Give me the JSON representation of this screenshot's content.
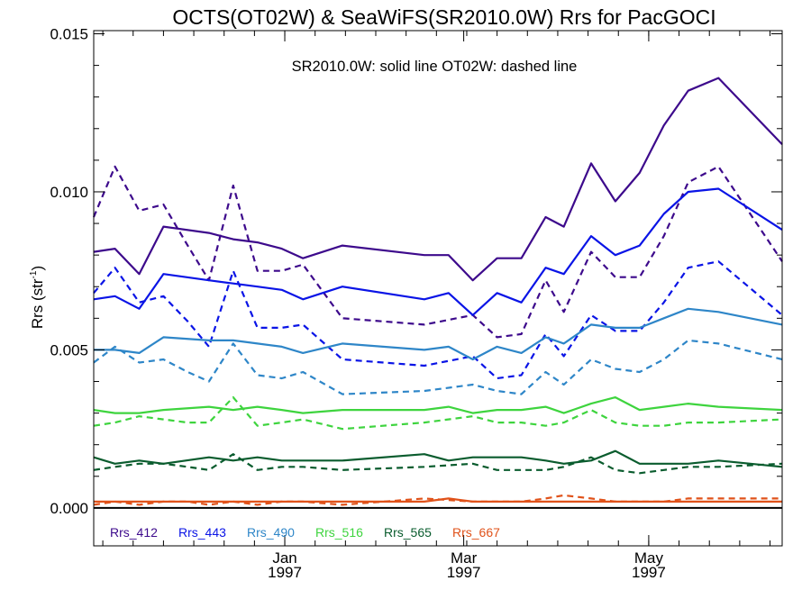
{
  "chart_data": {
    "type": "line",
    "title": "OCTS(OT02W) & SeaWiFS(SR2010.0W)  Rrs for PacGOCI",
    "subtitle": "SR2010.0W: solid line   OT02W: dashed line",
    "ylabel": "Rrs (str",
    "ylabel_sup": "-1",
    "ylabel_close": ")",
    "ylim": [
      -0.0012,
      0.0151
    ],
    "yticks": [
      {
        "value": 0.0,
        "label": "0.000"
      },
      {
        "value": 0.005,
        "label": "0.005"
      },
      {
        "value": 0.01,
        "label": "0.010"
      },
      {
        "value": 0.015,
        "label": "0.015"
      }
    ],
    "x_unit": "days since 1996-10-30",
    "xlim": [
      0,
      227
    ],
    "xticks": [
      {
        "value": 63,
        "month": "Jan",
        "year": "1997"
      },
      {
        "value": 122,
        "month": "Mar",
        "year": "1997"
      },
      {
        "value": 183,
        "month": "May",
        "year": "1997"
      }
    ],
    "grid": false,
    "legend_position": "bottom-left",
    "series": [
      {
        "name": "Rrs_412",
        "color": "#3d0a8c",
        "style": "solid",
        "x": [
          0,
          7,
          15,
          23,
          38,
          46,
          54,
          62,
          69,
          82,
          109,
          117,
          125,
          133,
          141,
          149,
          155,
          164,
          172,
          180,
          188,
          196,
          206,
          227
        ],
        "y": [
          0.0081,
          0.0082,
          0.0074,
          0.0089,
          0.0087,
          0.0085,
          0.0084,
          0.0082,
          0.0079,
          0.0083,
          0.008,
          0.008,
          0.0072,
          0.0079,
          0.0079,
          0.0092,
          0.0089,
          0.0109,
          0.0097,
          0.0106,
          0.0121,
          0.0132,
          0.0136,
          0.0115
        ]
      },
      {
        "name": "Rrs_412",
        "color": "#3d0a8c",
        "style": "dashed",
        "x": [
          0,
          7,
          15,
          23,
          31,
          38,
          46,
          54,
          62,
          69,
          82,
          109,
          125,
          133,
          141,
          149,
          155,
          164,
          172,
          180,
          188,
          196,
          206,
          227
        ],
        "y": [
          0.0092,
          0.0108,
          0.0094,
          0.0096,
          0.0083,
          0.0072,
          0.0102,
          0.0075,
          0.0075,
          0.0077,
          0.006,
          0.0058,
          0.0061,
          0.0054,
          0.0055,
          0.0072,
          0.0062,
          0.0081,
          0.0073,
          0.0073,
          0.0086,
          0.0103,
          0.0108,
          0.0078
        ]
      },
      {
        "name": "Rrs_443",
        "color": "#0a14e6",
        "style": "solid",
        "x": [
          0,
          7,
          15,
          23,
          38,
          46,
          54,
          62,
          69,
          82,
          109,
          117,
          125,
          133,
          141,
          149,
          155,
          164,
          172,
          180,
          188,
          196,
          206,
          227
        ],
        "y": [
          0.0066,
          0.0067,
          0.0063,
          0.0074,
          0.0072,
          0.0071,
          0.007,
          0.0069,
          0.0066,
          0.007,
          0.0066,
          0.0068,
          0.0061,
          0.0068,
          0.0065,
          0.0076,
          0.0074,
          0.0086,
          0.008,
          0.0083,
          0.0093,
          0.01,
          0.0101,
          0.0088
        ]
      },
      {
        "name": "Rrs_443",
        "color": "#0a14e6",
        "style": "dashed",
        "x": [
          0,
          7,
          15,
          23,
          31,
          38,
          46,
          54,
          62,
          69,
          82,
          109,
          125,
          133,
          141,
          149,
          155,
          164,
          172,
          180,
          188,
          196,
          206,
          227
        ],
        "y": [
          0.0068,
          0.0076,
          0.0065,
          0.0067,
          0.0059,
          0.0051,
          0.0075,
          0.0057,
          0.0057,
          0.0058,
          0.0047,
          0.0045,
          0.0048,
          0.0041,
          0.0042,
          0.0055,
          0.0048,
          0.0061,
          0.0056,
          0.0056,
          0.0065,
          0.0076,
          0.0078,
          0.0061
        ]
      },
      {
        "name": "Rrs_490",
        "color": "#2e86c8",
        "style": "solid",
        "x": [
          0,
          7,
          15,
          23,
          38,
          46,
          54,
          62,
          69,
          82,
          109,
          117,
          125,
          133,
          141,
          149,
          155,
          164,
          172,
          180,
          188,
          196,
          206,
          227
        ],
        "y": [
          0.005,
          0.005,
          0.0049,
          0.0054,
          0.0053,
          0.0053,
          0.0052,
          0.0051,
          0.0049,
          0.0052,
          0.005,
          0.0051,
          0.0047,
          0.0051,
          0.0049,
          0.0054,
          0.0052,
          0.0058,
          0.0057,
          0.0057,
          0.006,
          0.0063,
          0.0062,
          0.0058
        ]
      },
      {
        "name": "Rrs_490",
        "color": "#2e86c8",
        "style": "dashed",
        "x": [
          0,
          7,
          15,
          23,
          31,
          38,
          46,
          54,
          62,
          69,
          82,
          109,
          125,
          133,
          141,
          149,
          155,
          164,
          172,
          180,
          188,
          196,
          206,
          227
        ],
        "y": [
          0.0046,
          0.0051,
          0.0046,
          0.0047,
          0.0043,
          0.004,
          0.0052,
          0.0042,
          0.0041,
          0.0043,
          0.0036,
          0.0037,
          0.0039,
          0.0037,
          0.0036,
          0.0043,
          0.0039,
          0.0047,
          0.0044,
          0.0043,
          0.0047,
          0.0053,
          0.0052,
          0.0047
        ]
      },
      {
        "name": "Rrs_516",
        "color": "#3ed43e",
        "style": "solid",
        "x": [
          0,
          7,
          15,
          23,
          38,
          46,
          54,
          62,
          69,
          82,
          109,
          117,
          125,
          133,
          141,
          149,
          155,
          164,
          172,
          180,
          188,
          196,
          206,
          227
        ],
        "y": [
          0.0031,
          0.003,
          0.003,
          0.0031,
          0.0032,
          0.0031,
          0.0032,
          0.0031,
          0.003,
          0.0031,
          0.0031,
          0.0032,
          0.003,
          0.0031,
          0.0031,
          0.0032,
          0.003,
          0.0033,
          0.0035,
          0.0031,
          0.0032,
          0.0033,
          0.0032,
          0.0031
        ]
      },
      {
        "name": "Rrs_516",
        "color": "#3ed43e",
        "style": "dashed",
        "x": [
          0,
          7,
          15,
          23,
          31,
          38,
          46,
          54,
          62,
          69,
          82,
          109,
          125,
          133,
          141,
          149,
          155,
          164,
          172,
          180,
          188,
          196,
          206,
          227
        ],
        "y": [
          0.0026,
          0.0027,
          0.0029,
          0.0028,
          0.0027,
          0.0027,
          0.0035,
          0.0026,
          0.0027,
          0.0028,
          0.0025,
          0.0027,
          0.0029,
          0.0027,
          0.0027,
          0.0026,
          0.0027,
          0.0031,
          0.0027,
          0.0026,
          0.0026,
          0.0027,
          0.0027,
          0.0028
        ]
      },
      {
        "name": "Rrs_565",
        "color": "#0a5c2e",
        "style": "solid",
        "x": [
          0,
          7,
          15,
          23,
          38,
          46,
          54,
          62,
          69,
          82,
          109,
          117,
          125,
          133,
          141,
          149,
          155,
          164,
          172,
          180,
          188,
          196,
          206,
          227
        ],
        "y": [
          0.0016,
          0.0014,
          0.0015,
          0.0014,
          0.0016,
          0.0015,
          0.0016,
          0.0015,
          0.0015,
          0.0015,
          0.0017,
          0.0015,
          0.0016,
          0.0016,
          0.0016,
          0.0015,
          0.0014,
          0.0015,
          0.0018,
          0.0014,
          0.0014,
          0.0014,
          0.0015,
          0.0013
        ]
      },
      {
        "name": "Rrs_565",
        "color": "#0a5c2e",
        "style": "dashed",
        "x": [
          0,
          7,
          15,
          23,
          31,
          38,
          46,
          54,
          62,
          69,
          82,
          109,
          125,
          133,
          141,
          149,
          155,
          164,
          172,
          180,
          188,
          196,
          206,
          227
        ],
        "y": [
          0.0012,
          0.0013,
          0.0014,
          0.0014,
          0.0013,
          0.0012,
          0.0017,
          0.0012,
          0.0013,
          0.0013,
          0.0012,
          0.0013,
          0.0014,
          0.0012,
          0.0012,
          0.0012,
          0.0013,
          0.0016,
          0.0012,
          0.0011,
          0.0012,
          0.0013,
          0.0013,
          0.0014
        ]
      },
      {
        "name": "Rrs_667",
        "color": "#e0521a",
        "style": "solid",
        "x": [
          0,
          7,
          15,
          23,
          38,
          46,
          54,
          62,
          69,
          82,
          109,
          117,
          125,
          133,
          141,
          149,
          155,
          164,
          172,
          180,
          188,
          196,
          206,
          227
        ],
        "y": [
          0.0002,
          0.0002,
          0.0002,
          0.0002,
          0.0002,
          0.0002,
          0.0002,
          0.0002,
          0.0002,
          0.0002,
          0.0002,
          0.0003,
          0.0002,
          0.0002,
          0.0002,
          0.0002,
          0.0002,
          0.0002,
          0.0002,
          0.0002,
          0.0002,
          0.0002,
          0.0002,
          0.0002
        ]
      },
      {
        "name": "Rrs_667",
        "color": "#e0521a",
        "style": "dashed",
        "x": [
          0,
          7,
          15,
          23,
          31,
          38,
          46,
          54,
          62,
          69,
          82,
          109,
          125,
          133,
          141,
          149,
          155,
          164,
          172,
          180,
          188,
          196,
          206,
          227
        ],
        "y": [
          0.0001,
          0.0002,
          0.0001,
          0.0002,
          0.0002,
          0.0001,
          0.0002,
          0.0001,
          0.0002,
          0.0002,
          0.0001,
          0.0003,
          0.0002,
          0.0002,
          0.0002,
          0.0003,
          0.0004,
          0.0003,
          0.0002,
          0.0002,
          0.0002,
          0.0003,
          0.0003,
          0.0003
        ]
      }
    ],
    "legend": [
      {
        "label": "Rrs_412",
        "color": "#3d0a8c"
      },
      {
        "label": "Rrs_443",
        "color": "#0a14e6"
      },
      {
        "label": "Rrs_490",
        "color": "#2e86c8"
      },
      {
        "label": "Rrs_516",
        "color": "#3ed43e"
      },
      {
        "label": "Rrs_565",
        "color": "#0a5c2e"
      },
      {
        "label": "Rrs_667",
        "color": "#e0521a"
      }
    ]
  }
}
